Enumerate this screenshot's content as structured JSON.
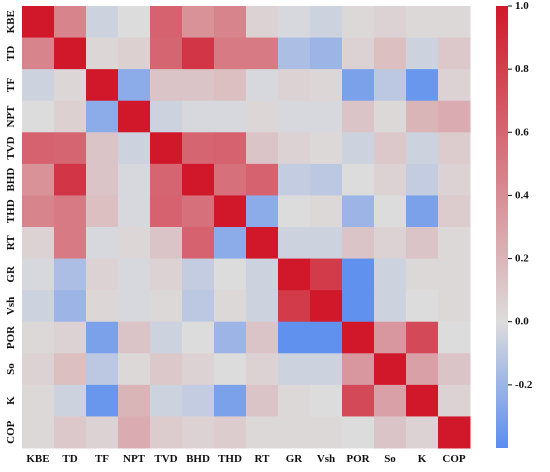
{
  "chart_data": {
    "type": "heatmap",
    "variables": [
      "KBE",
      "TD",
      "TF",
      "NPT",
      "TVD",
      "BHD",
      "THD",
      "RT",
      "GR",
      "Vsh",
      "POR",
      "So",
      "K",
      "COP"
    ],
    "matrix": [
      [
        1.0,
        0.45,
        -0.05,
        0.0,
        0.62,
        0.38,
        0.45,
        0.05,
        -0.02,
        -0.05,
        0.02,
        0.05,
        0.02,
        0.02
      ],
      [
        0.45,
        1.0,
        0.03,
        0.06,
        0.6,
        0.85,
        0.5,
        0.5,
        -0.15,
        -0.2,
        0.05,
        0.15,
        -0.05,
        0.1
      ],
      [
        -0.05,
        0.03,
        1.0,
        -0.25,
        0.12,
        0.12,
        0.15,
        -0.02,
        0.05,
        0.03,
        -0.3,
        -0.1,
        -0.35,
        0.05
      ],
      [
        0.0,
        0.06,
        -0.25,
        1.0,
        -0.05,
        -0.02,
        -0.02,
        0.03,
        -0.02,
        -0.02,
        0.12,
        0.02,
        0.2,
        0.25
      ],
      [
        0.62,
        0.6,
        0.12,
        -0.05,
        1.0,
        0.6,
        0.62,
        0.12,
        0.05,
        0.02,
        -0.05,
        0.1,
        -0.05,
        0.08
      ],
      [
        0.38,
        0.85,
        0.12,
        -0.02,
        0.6,
        1.0,
        0.55,
        0.62,
        -0.08,
        -0.1,
        0.0,
        0.05,
        -0.08,
        0.05
      ],
      [
        0.45,
        0.5,
        0.15,
        -0.02,
        0.62,
        0.55,
        1.0,
        -0.25,
        0.0,
        0.02,
        -0.2,
        0.0,
        -0.3,
        0.08
      ],
      [
        0.05,
        0.5,
        -0.02,
        0.03,
        0.12,
        0.62,
        -0.25,
        1.0,
        -0.05,
        -0.05,
        0.12,
        0.05,
        0.12,
        0.02
      ],
      [
        -0.02,
        -0.15,
        0.05,
        -0.02,
        0.05,
        -0.08,
        0.0,
        -0.05,
        1.0,
        0.82,
        -0.38,
        -0.05,
        0.02,
        0.02
      ],
      [
        -0.05,
        -0.2,
        0.03,
        -0.02,
        0.02,
        -0.1,
        0.02,
        -0.05,
        0.82,
        1.0,
        -0.38,
        -0.05,
        0.0,
        0.02
      ],
      [
        0.02,
        0.05,
        -0.3,
        0.12,
        -0.05,
        0.0,
        -0.2,
        0.12,
        -0.38,
        -0.38,
        1.0,
        0.35,
        0.75,
        0.0
      ],
      [
        0.05,
        0.15,
        -0.1,
        0.02,
        0.1,
        0.05,
        0.0,
        0.05,
        -0.05,
        -0.05,
        0.35,
        1.0,
        0.3,
        0.12
      ],
      [
        0.02,
        -0.05,
        -0.35,
        0.2,
        -0.05,
        -0.08,
        -0.3,
        0.12,
        0.02,
        0.0,
        0.75,
        0.3,
        1.0,
        0.05
      ],
      [
        0.02,
        0.1,
        0.05,
        0.25,
        0.08,
        0.05,
        0.08,
        0.02,
        0.02,
        0.02,
        0.0,
        0.12,
        0.05,
        1.0
      ]
    ],
    "colorbar": {
      "range": [
        -0.4,
        1.0
      ],
      "center": 0.0,
      "ticks": [
        -0.2,
        0.0,
        0.2,
        0.4,
        0.6,
        0.8,
        1.0
      ],
      "tick_labels": [
        "-0.2",
        "0.0",
        "0.2",
        "0.4",
        "0.6",
        "0.8",
        "1.0"
      ]
    },
    "colors": {
      "negative": "#5A8DF0",
      "center": "#DDDCDC",
      "positive": "#D0182A"
    },
    "title": "",
    "xlabel": "",
    "ylabel": ""
  }
}
